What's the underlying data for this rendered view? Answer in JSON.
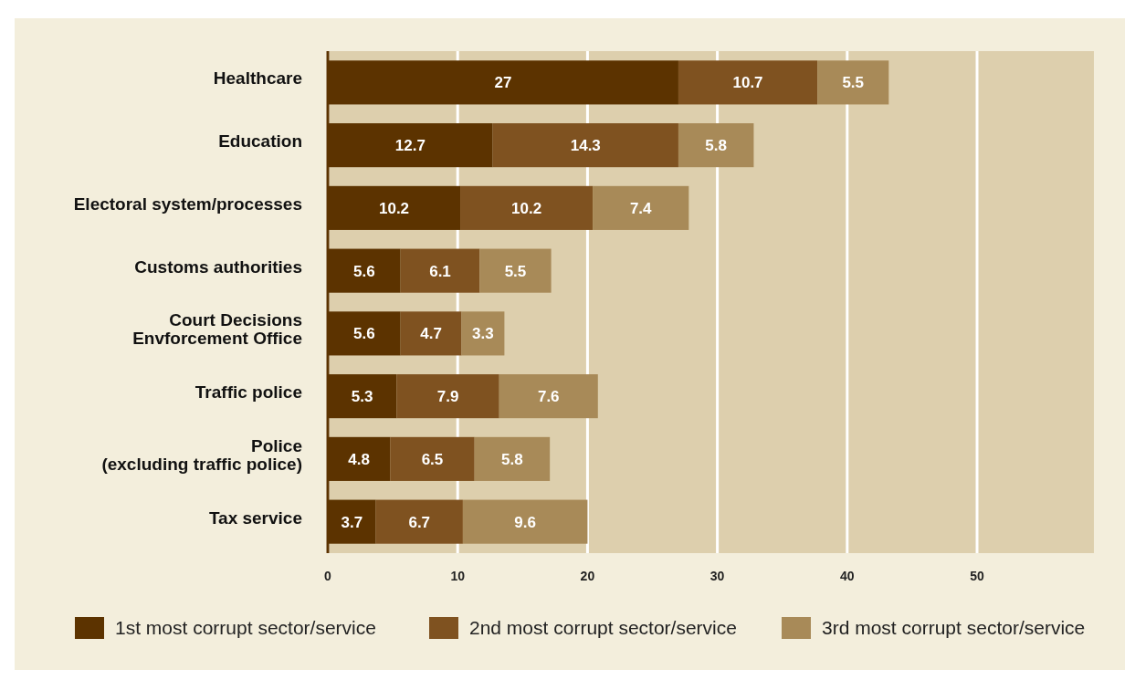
{
  "chart_data": {
    "type": "bar",
    "orientation": "horizontal",
    "stacked": true,
    "categories": [
      "Healthcare",
      "Education",
      "Electoral system/processes",
      "Customs authorities",
      "Court Decisions\nEnvforcement Office",
      "Traffic police",
      "Police\n(excluding traffic police)",
      "Tax service"
    ],
    "series": [
      {
        "name": "1st most corrupt sector/service",
        "color": "#5c3300",
        "values": [
          27,
          12.7,
          10.2,
          5.6,
          5.6,
          5.3,
          4.8,
          3.7
        ]
      },
      {
        "name": "2nd most corrupt sector/service",
        "color": "#7f5220",
        "values": [
          10.7,
          14.3,
          10.2,
          6.1,
          4.7,
          7.9,
          6.5,
          6.7
        ]
      },
      {
        "name": "3rd most corrupt sector/service",
        "color": "#a88a58",
        "values": [
          5.5,
          5.8,
          7.4,
          5.5,
          3.3,
          7.6,
          5.8,
          9.6
        ]
      }
    ],
    "xlim": [
      0,
      59
    ],
    "xticks": [
      0,
      10,
      20,
      30,
      40,
      50
    ],
    "grid": "x",
    "legend": "bottom",
    "data_labels": true
  }
}
